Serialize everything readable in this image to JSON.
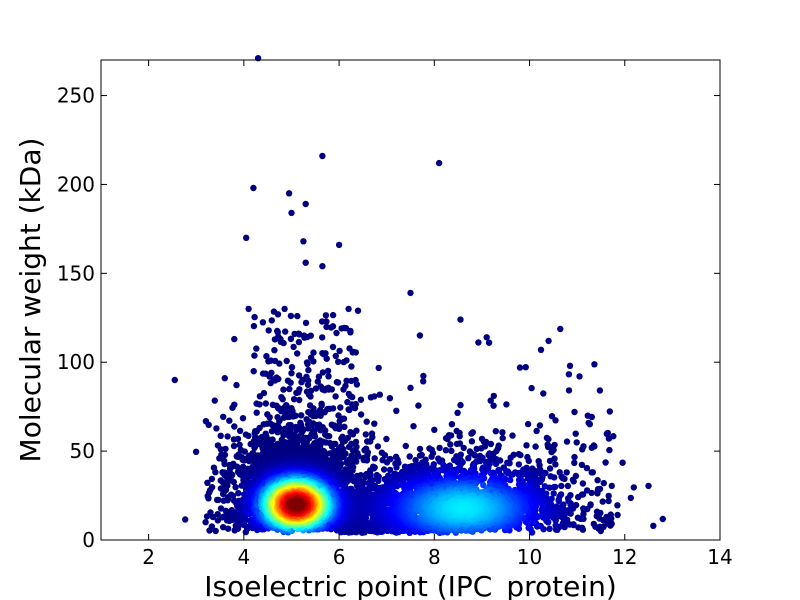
{
  "chart_data": {
    "type": "scatter",
    "title": "",
    "xlabel": "Isoelectric point (IPC_protein)",
    "ylabel": "Molecular weight (kDa)",
    "xlim": [
      1,
      14
    ],
    "ylim": [
      0,
      270
    ],
    "xticks": [
      2,
      4,
      6,
      8,
      10,
      12,
      14
    ],
    "yticks": [
      0,
      50,
      100,
      150,
      200,
      250
    ],
    "grid": false,
    "legend": "none",
    "colormap": "jet (point density)",
    "colors": {
      "low_density": "#00008f",
      "high_density": "#8b0000"
    },
    "density_clusters": [
      {
        "center_x": 5.1,
        "center_y": 22,
        "relative_density": "highest"
      },
      {
        "center_x": 8.6,
        "center_y": 20,
        "relative_density": "medium"
      }
    ],
    "outliers": [
      {
        "x": 2.55,
        "y": 90
      },
      {
        "x": 4.3,
        "y": 271
      },
      {
        "x": 4.2,
        "y": 198
      },
      {
        "x": 4.95,
        "y": 195
      },
      {
        "x": 5.3,
        "y": 189
      },
      {
        "x": 5.0,
        "y": 184
      },
      {
        "x": 4.05,
        "y": 170
      },
      {
        "x": 5.25,
        "y": 168
      },
      {
        "x": 5.65,
        "y": 216
      },
      {
        "x": 6.0,
        "y": 166
      },
      {
        "x": 5.3,
        "y": 156
      },
      {
        "x": 5.65,
        "y": 154
      },
      {
        "x": 8.1,
        "y": 212
      },
      {
        "x": 7.5,
        "y": 139
      },
      {
        "x": 8.55,
        "y": 124
      },
      {
        "x": 9.1,
        "y": 114
      },
      {
        "x": 9.15,
        "y": 111
      },
      {
        "x": 10.4,
        "y": 112
      },
      {
        "x": 9.8,
        "y": 97
      },
      {
        "x": 10.85,
        "y": 98
      },
      {
        "x": 11.05,
        "y": 92
      },
      {
        "x": 12.6,
        "y": 8
      },
      {
        "x": 4.1,
        "y": 130
      },
      {
        "x": 3.8,
        "y": 113
      },
      {
        "x": 3.6,
        "y": 91
      },
      {
        "x": 6.2,
        "y": 130
      }
    ]
  }
}
